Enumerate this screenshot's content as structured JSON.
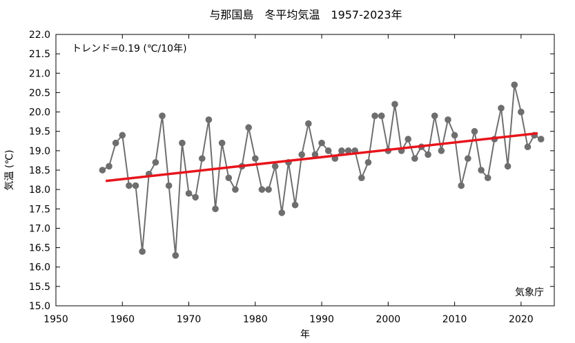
{
  "chart_data": {
    "type": "line",
    "title": "与那国島　冬平均気温　1957-2023年",
    "xlabel": "年",
    "ylabel": "気温 (℃)",
    "trend_label": "トレンド=0.19 (℃/10年)",
    "source": "気象庁",
    "xlim": [
      1950,
      2025
    ],
    "ylim": [
      15.0,
      22.0
    ],
    "x_ticks": [
      1950,
      1960,
      1970,
      1980,
      1990,
      2000,
      2010,
      2020
    ],
    "y_ticks": [
      "15.0",
      "15.5",
      "16.0",
      "16.5",
      "17.0",
      "17.5",
      "18.0",
      "18.5",
      "19.0",
      "19.5",
      "20.0",
      "20.5",
      "21.0",
      "21.5",
      "22.0"
    ],
    "grid": false,
    "series": [
      {
        "color": "#6e6e6e",
        "x": [
          1957,
          1958,
          1959,
          1960,
          1961,
          1962,
          1963,
          1964,
          1965,
          1966,
          1967,
          1968,
          1969,
          1970,
          1971,
          1972,
          1973,
          1974,
          1975,
          1976,
          1977,
          1978,
          1979,
          1980,
          1981,
          1982,
          1983,
          1984,
          1985,
          1986,
          1987,
          1988,
          1989,
          1990,
          1991,
          1992,
          1993,
          1994,
          1995,
          1996,
          1997,
          1998,
          1999,
          2000,
          2001,
          2002,
          2003,
          2004,
          2005,
          2006,
          2007,
          2008,
          2009,
          2010,
          2011,
          2012,
          2013,
          2014,
          2015,
          2016,
          2017,
          2018,
          2019,
          2020,
          2021,
          2022,
          2023
        ],
        "y": [
          18.5,
          18.6,
          19.2,
          19.4,
          18.1,
          18.1,
          16.4,
          18.4,
          18.7,
          19.9,
          18.1,
          16.3,
          19.2,
          17.9,
          17.8,
          18.8,
          19.8,
          17.5,
          19.2,
          18.3,
          18.0,
          18.6,
          19.6,
          18.8,
          18.0,
          18.0,
          18.6,
          17.4,
          18.7,
          17.6,
          18.9,
          19.7,
          18.9,
          19.2,
          19.0,
          18.8,
          19.0,
          19.0,
          19.0,
          18.3,
          18.7,
          19.9,
          19.9,
          19.0,
          20.2,
          19.0,
          19.3,
          18.8,
          19.1,
          18.9,
          19.9,
          19.0,
          19.8,
          19.4,
          18.1,
          18.8,
          19.5,
          18.5,
          18.3,
          19.3,
          20.1,
          18.6,
          20.7,
          20.0,
          19.1,
          19.4,
          19.3
        ]
      }
    ],
    "trend": {
      "color": "#e8141b",
      "x": [
        1957.5,
        2022.5
      ],
      "y": [
        18.22,
        19.45
      ]
    }
  }
}
